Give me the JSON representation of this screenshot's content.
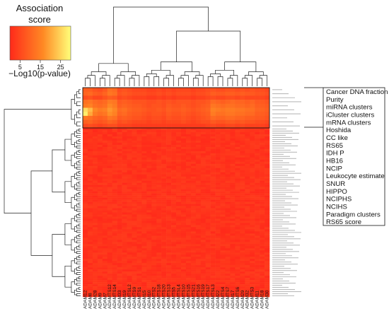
{
  "chart_data": {
    "type": "heatmap",
    "legend": {
      "title_lines": [
        "Association",
        "score"
      ],
      "axis_label": "−Log10(p-value)",
      "ticks": [
        5,
        15,
        25
      ],
      "range": [
        0,
        30
      ],
      "colors": [
        "#ff2a1a",
        "#ff8a24",
        "#ffff7a"
      ]
    },
    "columns": [
      "ADAM12",
      "ADAM8",
      "ADAM28",
      "ADAM9",
      "ADAM7",
      "ADAMTS12",
      "ADAMTS14",
      "ADAM33",
      "ADAM19",
      "ADAMTSL2",
      "ADAMTS9",
      "ADAMTS1",
      "ADAM15",
      "ADAM10",
      "ADAMTS2",
      "ADAMTS18",
      "ADAMTS20",
      "ADAMTS13",
      "ADAMTS5",
      "ADAMTSL4",
      "ADAMTS10",
      "ADAMTS15",
      "ADAMTS21",
      "ADAMTS16",
      "ADAMTS19",
      "ADAMTS17",
      "ADAMTSL3",
      "ADAM22",
      "ADAMTS4",
      "ADAMTS7",
      "ADAM17",
      "ADAMTS6",
      "ADAM29",
      "ADAM32",
      "ADAMTS3",
      "ADAM11",
      "ADAM18",
      "ADAM30"
    ],
    "highlighted_rows": [
      "Cancer DNA fraction",
      "Purity",
      "miRNA clusters",
      "iCluster clusters",
      "mRNA clusters",
      "Hoshida",
      "CC like",
      "RS65",
      "IDH P",
      "HB16",
      "NCIP",
      "Leukocyte estimate",
      "SNUR",
      "HIPPO",
      "NCIPHS",
      "NCIHS",
      "Paradigm clusters",
      "RS65 score"
    ],
    "top_block": {
      "row_count": 10,
      "values": [
        [
          9,
          9,
          7,
          6,
          8,
          12,
          11,
          6,
          7,
          6,
          5,
          5,
          5,
          4,
          4,
          5,
          4,
          5,
          4,
          5,
          5,
          5,
          4,
          5,
          5,
          6,
          7,
          6,
          6,
          7,
          7,
          6,
          7,
          6,
          7,
          6,
          6,
          5
        ],
        [
          10,
          11,
          9,
          8,
          10,
          13,
          12,
          7,
          8,
          7,
          6,
          6,
          6,
          5,
          5,
          6,
          5,
          6,
          5,
          6,
          6,
          6,
          5,
          6,
          6,
          7,
          9,
          8,
          8,
          9,
          9,
          8,
          9,
          8,
          8,
          7,
          7,
          6
        ],
        [
          6,
          7,
          5,
          5,
          7,
          9,
          8,
          5,
          6,
          5,
          4,
          4,
          4,
          3,
          3,
          4,
          3,
          4,
          3,
          4,
          4,
          4,
          3,
          4,
          4,
          5,
          6,
          5,
          5,
          6,
          6,
          5,
          6,
          5,
          5,
          5,
          5,
          4
        ],
        [
          12,
          13,
          11,
          10,
          11,
          14,
          13,
          8,
          9,
          8,
          7,
          7,
          7,
          6,
          6,
          7,
          6,
          7,
          6,
          7,
          7,
          7,
          6,
          7,
          7,
          8,
          11,
          10,
          9,
          10,
          11,
          10,
          10,
          9,
          10,
          8,
          8,
          7
        ],
        [
          14,
          15,
          12,
          11,
          12,
          16,
          14,
          9,
          10,
          9,
          8,
          8,
          7,
          6,
          7,
          7,
          6,
          8,
          7,
          7,
          8,
          7,
          6,
          7,
          8,
          9,
          13,
          12,
          11,
          12,
          12,
          11,
          11,
          10,
          11,
          9,
          9,
          8
        ],
        [
          26,
          22,
          16,
          14,
          15,
          18,
          16,
          11,
          12,
          10,
          9,
          9,
          8,
          7,
          7,
          8,
          7,
          9,
          8,
          8,
          9,
          8,
          7,
          8,
          9,
          10,
          15,
          14,
          13,
          14,
          14,
          13,
          13,
          12,
          12,
          10,
          10,
          9
        ],
        [
          28,
          20,
          14,
          12,
          13,
          17,
          15,
          10,
          11,
          9,
          8,
          8,
          7,
          6,
          7,
          7,
          6,
          8,
          7,
          7,
          8,
          7,
          6,
          7,
          8,
          9,
          14,
          12,
          12,
          13,
          13,
          12,
          12,
          11,
          11,
          9,
          9,
          8
        ],
        [
          13,
          12,
          10,
          9,
          10,
          13,
          12,
          8,
          9,
          8,
          7,
          7,
          6,
          5,
          6,
          6,
          5,
          7,
          6,
          6,
          7,
          6,
          5,
          6,
          7,
          8,
          11,
          10,
          10,
          11,
          11,
          10,
          10,
          9,
          9,
          8,
          8,
          7
        ],
        [
          9,
          10,
          8,
          7,
          8,
          10,
          9,
          6,
          7,
          6,
          5,
          5,
          5,
          4,
          5,
          5,
          4,
          5,
          5,
          5,
          6,
          5,
          4,
          5,
          6,
          6,
          8,
          7,
          7,
          8,
          8,
          7,
          8,
          7,
          7,
          6,
          6,
          5
        ],
        [
          5,
          6,
          5,
          4,
          5,
          6,
          6,
          4,
          4,
          4,
          3,
          3,
          3,
          3,
          3,
          3,
          3,
          3,
          3,
          3,
          3,
          3,
          3,
          3,
          3,
          4,
          5,
          4,
          4,
          5,
          5,
          4,
          5,
          4,
          4,
          4,
          4,
          3
        ]
      ]
    },
    "bottom_block": {
      "row_count": 80,
      "value_range": [
        0,
        3
      ]
    }
  }
}
